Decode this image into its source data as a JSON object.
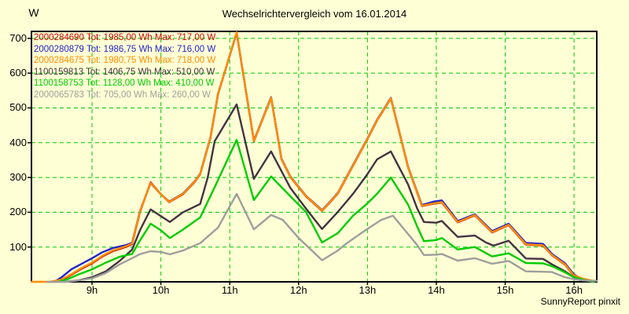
{
  "title": "Wechselrichtervergleich vom 16.01.2014",
  "y_unit_label": "W",
  "watermark": "SunnyReport pinxit",
  "colors": {
    "background": "#FFFFD5",
    "grid": "#00C800",
    "axis": "#000000",
    "text": "#000000"
  },
  "chart_data": {
    "type": "line",
    "title": "Wechselrichtervergleich vom 16.01.2014",
    "ylabel": "W",
    "xlim": [
      8.12,
      16.33
    ],
    "ylim": [
      0,
      720
    ],
    "grid": true,
    "grid_style": "dashed-green",
    "legend_position": "top-left",
    "x_tick_values": [
      9,
      10,
      11,
      12,
      13,
      14,
      15,
      16
    ],
    "x_tick_labels": [
      "9h",
      "10h",
      "11h",
      "12h",
      "13h",
      "14h",
      "15h",
      "16h"
    ],
    "y_tick_values": [
      100,
      200,
      300,
      400,
      500,
      600,
      700
    ],
    "series": [
      {
        "name": "2000284690",
        "tot_wh": "1985,00",
        "max_w": "717,00",
        "legend_label": "2000284690 Tot: 1985,00 Wh Max: 717,00 W",
        "color": "#CC0000",
        "points": [
          [
            8.4,
            0
          ],
          [
            8.55,
            4
          ],
          [
            8.7,
            20
          ],
          [
            8.85,
            38
          ],
          [
            9.0,
            53
          ],
          [
            9.15,
            73
          ],
          [
            9.3,
            88
          ],
          [
            9.5,
            101
          ],
          [
            9.58,
            108
          ],
          [
            9.7,
            203
          ],
          [
            9.85,
            286
          ],
          [
            10.0,
            252
          ],
          [
            10.12,
            229
          ],
          [
            10.32,
            252
          ],
          [
            10.5,
            289
          ],
          [
            10.57,
            309
          ],
          [
            10.72,
            414
          ],
          [
            10.83,
            539
          ],
          [
            11.1,
            717
          ],
          [
            11.35,
            404
          ],
          [
            11.6,
            529
          ],
          [
            11.75,
            353
          ],
          [
            11.88,
            301
          ],
          [
            12.11,
            245
          ],
          [
            12.34,
            204
          ],
          [
            12.45,
            227
          ],
          [
            12.57,
            254
          ],
          [
            12.79,
            334
          ],
          [
            12.99,
            407
          ],
          [
            13.14,
            464
          ],
          [
            13.34,
            527
          ],
          [
            13.59,
            329
          ],
          [
            13.79,
            218
          ],
          [
            13.97,
            225
          ],
          [
            14.08,
            228
          ],
          [
            14.31,
            171
          ],
          [
            14.56,
            191
          ],
          [
            14.81,
            142
          ],
          [
            15.05,
            163
          ],
          [
            15.3,
            107
          ],
          [
            15.55,
            104
          ],
          [
            15.68,
            76
          ],
          [
            15.87,
            49
          ],
          [
            15.99,
            19
          ],
          [
            16.13,
            8
          ],
          [
            16.28,
            1
          ]
        ]
      },
      {
        "name": "2000280879",
        "tot_wh": "1986,75",
        "max_w": "716,00",
        "legend_label": "2000280879 Tot: 1986,75 Wh Max: 716,00 W",
        "color": "#2222CC",
        "points": [
          [
            8.45,
            0
          ],
          [
            8.55,
            12
          ],
          [
            8.7,
            36
          ],
          [
            8.85,
            52
          ],
          [
            9.0,
            68
          ],
          [
            9.15,
            85
          ],
          [
            9.3,
            97
          ],
          [
            9.5,
            106
          ],
          [
            9.58,
            112
          ],
          [
            9.7,
            206
          ],
          [
            9.85,
            283
          ],
          [
            10.0,
            252
          ],
          [
            10.12,
            231
          ],
          [
            10.32,
            254
          ],
          [
            10.5,
            291
          ],
          [
            10.57,
            311
          ],
          [
            10.72,
            416
          ],
          [
            10.83,
            541
          ],
          [
            11.1,
            716
          ],
          [
            11.35,
            406
          ],
          [
            11.6,
            531
          ],
          [
            11.75,
            355
          ],
          [
            11.88,
            303
          ],
          [
            12.11,
            247
          ],
          [
            12.34,
            206
          ],
          [
            12.45,
            229
          ],
          [
            12.57,
            256
          ],
          [
            12.79,
            336
          ],
          [
            12.99,
            409
          ],
          [
            13.14,
            466
          ],
          [
            13.34,
            529
          ],
          [
            13.59,
            331
          ],
          [
            13.79,
            221
          ],
          [
            13.97,
            231
          ],
          [
            14.08,
            234
          ],
          [
            14.31,
            175
          ],
          [
            14.56,
            194
          ],
          [
            14.81,
            146
          ],
          [
            15.05,
            167
          ],
          [
            15.3,
            112
          ],
          [
            15.55,
            109
          ],
          [
            15.68,
            80
          ],
          [
            15.87,
            53
          ],
          [
            15.99,
            23
          ],
          [
            16.08,
            11
          ],
          [
            16.2,
            3
          ],
          [
            16.28,
            0
          ]
        ]
      },
      {
        "name": "2000284675",
        "tot_wh": "1980,75",
        "max_w": "718,00",
        "legend_label": "2000284675 Tot: 1980,75 Wh Max: 718,00 W",
        "color": "#FF8C00",
        "points": [
          [
            8.12,
            0
          ],
          [
            8.38,
            0
          ],
          [
            8.55,
            6
          ],
          [
            8.7,
            22
          ],
          [
            8.85,
            40
          ],
          [
            9.0,
            55
          ],
          [
            9.15,
            75
          ],
          [
            9.3,
            90
          ],
          [
            9.5,
            103
          ],
          [
            9.58,
            110
          ],
          [
            9.7,
            205
          ],
          [
            9.85,
            284
          ],
          [
            10.0,
            252
          ],
          [
            10.12,
            230
          ],
          [
            10.32,
            253
          ],
          [
            10.5,
            290
          ],
          [
            10.57,
            310
          ],
          [
            10.72,
            415
          ],
          [
            10.83,
            540
          ],
          [
            11.1,
            718
          ],
          [
            11.35,
            405
          ],
          [
            11.6,
            530
          ],
          [
            11.75,
            354
          ],
          [
            11.88,
            302
          ],
          [
            12.11,
            246
          ],
          [
            12.34,
            205
          ],
          [
            12.45,
            228
          ],
          [
            12.57,
            255
          ],
          [
            12.79,
            335
          ],
          [
            12.99,
            408
          ],
          [
            13.14,
            465
          ],
          [
            13.34,
            528
          ],
          [
            13.59,
            330
          ],
          [
            13.79,
            219
          ],
          [
            13.97,
            226
          ],
          [
            14.08,
            229
          ],
          [
            14.31,
            172
          ],
          [
            14.56,
            192
          ],
          [
            14.81,
            143
          ],
          [
            15.05,
            164
          ],
          [
            15.3,
            108
          ],
          [
            15.55,
            105
          ],
          [
            15.68,
            77
          ],
          [
            15.87,
            50
          ],
          [
            15.99,
            20
          ],
          [
            16.13,
            9
          ],
          [
            16.3,
            2
          ]
        ]
      },
      {
        "name": "1100159813",
        "tot_wh": "1406,75",
        "max_w": "510,00",
        "legend_label": "1100159813 Tot: 1406,75 Wh Max: 510,00 W",
        "color": "#433343",
        "points": [
          [
            8.6,
            0
          ],
          [
            8.8,
            4
          ],
          [
            9.0,
            13
          ],
          [
            9.2,
            30
          ],
          [
            9.4,
            60
          ],
          [
            9.58,
            92
          ],
          [
            9.7,
            150
          ],
          [
            9.85,
            208
          ],
          [
            10.13,
            172
          ],
          [
            10.32,
            200
          ],
          [
            10.57,
            224
          ],
          [
            10.68,
            300
          ],
          [
            10.78,
            404
          ],
          [
            11.1,
            510
          ],
          [
            11.35,
            296
          ],
          [
            11.6,
            375
          ],
          [
            11.88,
            270
          ],
          [
            12.11,
            210
          ],
          [
            12.34,
            152
          ],
          [
            12.57,
            201
          ],
          [
            12.79,
            253
          ],
          [
            12.99,
            307
          ],
          [
            13.14,
            352
          ],
          [
            13.34,
            375
          ],
          [
            13.59,
            280
          ],
          [
            13.72,
            212
          ],
          [
            13.82,
            172
          ],
          [
            14.0,
            170
          ],
          [
            14.08,
            175
          ],
          [
            14.31,
            129
          ],
          [
            14.56,
            133
          ],
          [
            14.72,
            113
          ],
          [
            14.83,
            104
          ],
          [
            15.05,
            118
          ],
          [
            15.3,
            67
          ],
          [
            15.55,
            66
          ],
          [
            15.68,
            50
          ],
          [
            15.87,
            30
          ],
          [
            15.99,
            14
          ],
          [
            16.13,
            5
          ],
          [
            16.28,
            0
          ]
        ]
      },
      {
        "name": "1100158753",
        "tot_wh": "1128,00",
        "max_w": "410,00",
        "legend_label": "1100158753 Tot: 1128,00 Wh Max: 410,00 W",
        "color": "#00CC00",
        "points": [
          [
            8.5,
            0
          ],
          [
            8.65,
            8
          ],
          [
            8.8,
            21
          ],
          [
            9.0,
            36
          ],
          [
            9.2,
            55
          ],
          [
            9.4,
            72
          ],
          [
            9.58,
            80
          ],
          [
            9.7,
            120
          ],
          [
            9.85,
            167
          ],
          [
            10.0,
            148
          ],
          [
            10.13,
            126
          ],
          [
            10.32,
            150
          ],
          [
            10.57,
            185
          ],
          [
            10.8,
            280
          ],
          [
            11.1,
            408
          ],
          [
            11.35,
            235
          ],
          [
            11.6,
            303
          ],
          [
            11.88,
            246
          ],
          [
            12.11,
            200
          ],
          [
            12.34,
            113
          ],
          [
            12.57,
            140
          ],
          [
            12.79,
            190
          ],
          [
            12.99,
            224
          ],
          [
            13.14,
            253
          ],
          [
            13.34,
            300
          ],
          [
            13.59,
            222
          ],
          [
            13.72,
            160
          ],
          [
            13.82,
            117
          ],
          [
            14.0,
            120
          ],
          [
            14.08,
            126
          ],
          [
            14.31,
            93
          ],
          [
            14.56,
            100
          ],
          [
            14.81,
            73
          ],
          [
            15.05,
            82
          ],
          [
            15.3,
            54
          ],
          [
            15.55,
            53
          ],
          [
            15.68,
            45
          ],
          [
            15.87,
            27
          ],
          [
            15.99,
            14
          ],
          [
            16.13,
            6
          ],
          [
            16.28,
            0
          ]
        ]
      },
      {
        "name": "2000065783",
        "tot_wh": "705,00",
        "max_w": "260,00",
        "legend_label": "2000065783 Tot: 705,00 Wh Max: 260,00 W",
        "color": "#9E9E9E",
        "points": [
          [
            8.35,
            0
          ],
          [
            8.62,
            0
          ],
          [
            8.8,
            4
          ],
          [
            9.0,
            10
          ],
          [
            9.2,
            25
          ],
          [
            9.4,
            50
          ],
          [
            9.58,
            68
          ],
          [
            9.7,
            80
          ],
          [
            9.85,
            88
          ],
          [
            10.0,
            86
          ],
          [
            10.13,
            79
          ],
          [
            10.32,
            90
          ],
          [
            10.57,
            111
          ],
          [
            10.83,
            156
          ],
          [
            11.1,
            253
          ],
          [
            11.35,
            151
          ],
          [
            11.6,
            192
          ],
          [
            11.77,
            178
          ],
          [
            12.0,
            126
          ],
          [
            12.34,
            62
          ],
          [
            12.57,
            90
          ],
          [
            12.7,
            111
          ],
          [
            12.99,
            151
          ],
          [
            13.2,
            178
          ],
          [
            13.37,
            190
          ],
          [
            13.72,
            106
          ],
          [
            13.82,
            77
          ],
          [
            14.0,
            78
          ],
          [
            14.08,
            80
          ],
          [
            14.31,
            61
          ],
          [
            14.56,
            68
          ],
          [
            14.81,
            52
          ],
          [
            15.05,
            60
          ],
          [
            15.3,
            30
          ],
          [
            15.55,
            29
          ],
          [
            15.68,
            28
          ],
          [
            15.87,
            13
          ],
          [
            15.99,
            8
          ],
          [
            16.13,
            4
          ],
          [
            16.33,
            3
          ]
        ]
      }
    ]
  }
}
